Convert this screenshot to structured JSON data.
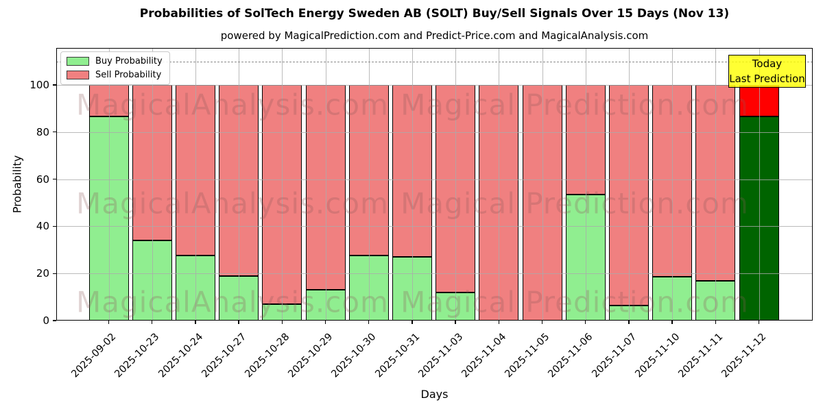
{
  "title": "Probabilities of SolTech Energy Sweden AB (SOLT) Buy/Sell Signals Over 15 Days (Nov 13)",
  "subtitle": "powered by MagicalPrediction.com and Predict-Price.com and MagicalAnalysis.com",
  "watermarks": {
    "left_text": "MagicalAnalysis.com",
    "right_text": "Magical Prediction.com"
  },
  "annotation": {
    "line1": "Today",
    "line2": "Last Prediction",
    "bg_color": "#FFFF00"
  },
  "chart_data": {
    "type": "bar",
    "stacked": true,
    "title": "Probabilities of SolTech Energy Sweden AB (SOLT) Buy/Sell Signals Over 15 Days (Nov 13)",
    "xlabel": "Days",
    "ylabel": "Probability",
    "ylim": [
      0,
      115.7
    ],
    "yticks": [
      0,
      20,
      40,
      60,
      80,
      100
    ],
    "grid": true,
    "legend_position": "upper left",
    "dashed_threshold_y": 110,
    "bar_edge_color": "#000000",
    "categories": [
      "2025-09-02",
      "2025-10-23",
      "2025-10-24",
      "2025-10-27",
      "2025-10-28",
      "2025-10-29",
      "2025-10-30",
      "2025-10-31",
      "2025-11-03",
      "2025-11-04",
      "2025-11-05",
      "2025-11-06",
      "2025-11-07",
      "2025-11-10",
      "2025-11-11",
      "2025-11-12"
    ],
    "series": [
      {
        "name": "Buy Probability",
        "color": "#90EE90",
        "values": [
          86.7,
          34,
          27.5,
          19,
          7,
          13,
          27.5,
          27,
          12,
          0,
          0,
          53.5,
          6.5,
          18.5,
          17,
          86.7
        ]
      },
      {
        "name": "Sell Probability",
        "color": "#F08080",
        "values": [
          13.3,
          66,
          72.5,
          81,
          93,
          87,
          72.5,
          73,
          88,
          100,
          100,
          46.5,
          93.5,
          81.5,
          83,
          13.3
        ]
      }
    ],
    "today_bar": {
      "category": "2025-11-12",
      "index": 15,
      "buy_color": "#006400",
      "sell_color": "#FF0000"
    }
  }
}
